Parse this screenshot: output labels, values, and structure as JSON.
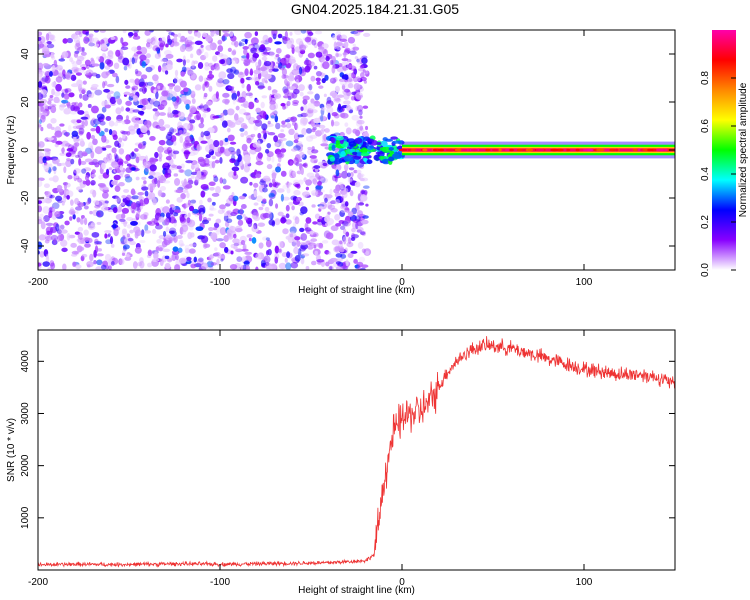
{
  "title": "GN04.2025.184.21.31.G05",
  "chart_data": [
    {
      "type": "heatmap",
      "title": "GN04.2025.184.21.31.G05",
      "xlabel": "Height of straight line (km)",
      "ylabel": "Frequency (Hz)",
      "xlim": [
        -200,
        150
      ],
      "ylim": [
        -50,
        50
      ],
      "x_ticks": [
        -200,
        -100,
        0,
        100
      ],
      "y_ticks": [
        -40,
        -20,
        0,
        20,
        40
      ],
      "grid": false,
      "colorbar": {
        "label": "Normalized spectral amplitude",
        "range": [
          0,
          1
        ],
        "ticks": [
          "0.0",
          "0.2",
          "0.4",
          "0.6",
          "0.8"
        ],
        "colormap": [
          "#ffffff",
          "#8800ff",
          "#0000ff",
          "#00ffff",
          "#00ff00",
          "#ffff00",
          "#ff8800",
          "#ff0000",
          "#ff00aa"
        ]
      },
      "regions": [
        {
          "x_range": [
            -200,
            -25
          ],
          "y_range": [
            -50,
            50
          ],
          "level": 0.12,
          "description": "broadband noise"
        },
        {
          "x_range": [
            -40,
            0
          ],
          "y_range": [
            -5,
            5
          ],
          "level": 0.35
        },
        {
          "x_range": [
            0,
            150
          ],
          "y_center": 0,
          "level": 0.95
        }
      ]
    },
    {
      "type": "line",
      "xlabel": "Height of straight line (km)",
      "ylabel": "SNR (10 * v/v)",
      "xlim": [
        -200,
        150
      ],
      "ylim": [
        0,
        4600
      ],
      "x_ticks": [
        -200,
        -100,
        0,
        100
      ],
      "y_ticks": [
        1000,
        2000,
        3000,
        4000
      ],
      "grid": false,
      "series": [
        {
          "color": "#ee3333",
          "x": [
            -200,
            -180,
            -160,
            -140,
            -120,
            -100,
            -80,
            -60,
            -40,
            -30,
            -20,
            -15,
            -10,
            -5,
            0,
            5,
            10,
            15,
            20,
            25,
            30,
            35,
            40,
            45,
            50,
            60,
            70,
            80,
            90,
            100,
            110,
            120,
            130,
            140,
            150
          ],
          "y": [
            100,
            110,
            105,
            110,
            120,
            110,
            120,
            130,
            140,
            160,
            180,
            300,
            1700,
            2600,
            2900,
            3000,
            3050,
            3200,
            3500,
            3800,
            4000,
            4150,
            4250,
            4300,
            4300,
            4250,
            4150,
            4050,
            3950,
            3850,
            3800,
            3750,
            3750,
            3700,
            3550
          ]
        }
      ]
    }
  ]
}
